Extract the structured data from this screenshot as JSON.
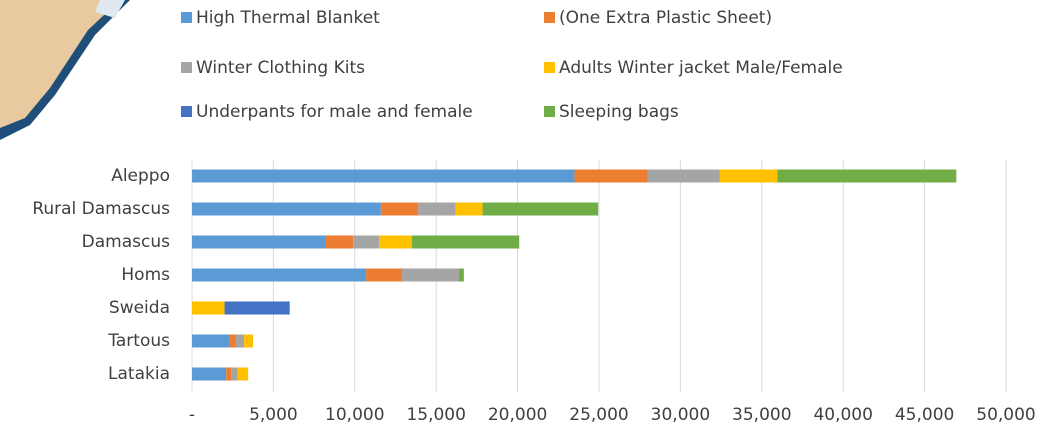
{
  "chart_data": {
    "type": "stacked-barh",
    "categories": [
      "Aleppo",
      "Rural Damascus",
      "Damascus",
      "Homs",
      "Sweida",
      "Tartous",
      "Latakia"
    ],
    "series": [
      {
        "name": "High Thermal Blanket",
        "color": "#5b9bd5",
        "values": [
          23500,
          11600,
          8200,
          10700,
          0,
          2300,
          2100
        ]
      },
      {
        "name": "(One Extra Plastic Sheet)",
        "color": "#ed7d31",
        "values": [
          4500,
          2300,
          1700,
          2200,
          0,
          400,
          300
        ]
      },
      {
        "name": "Winter Clothing Kits",
        "color": "#a5a5a5",
        "values": [
          4400,
          2300,
          1600,
          3500,
          0,
          500,
          400
        ]
      },
      {
        "name": "Adults Winter jacket Male/Female",
        "color": "#ffc000",
        "values": [
          3550,
          1650,
          2000,
          0,
          2000,
          550,
          650
        ]
      },
      {
        "name": "Underpants for male and female",
        "color": "#4472c4",
        "values": [
          0,
          0,
          0,
          0,
          4000,
          0,
          0
        ]
      },
      {
        "name": "Sleeping bags",
        "color": "#70ad47",
        "values": [
          11000,
          7100,
          6600,
          300,
          0,
          0,
          0
        ]
      }
    ],
    "xlim": [
      0,
      50000
    ],
    "xticks": [
      {
        "value": 0,
        "label": "-"
      },
      {
        "value": 5000,
        "label": "5,000"
      },
      {
        "value": 10000,
        "label": "10,000"
      },
      {
        "value": 15000,
        "label": "15,000"
      },
      {
        "value": 20000,
        "label": "20,000"
      },
      {
        "value": 25000,
        "label": "25,000"
      },
      {
        "value": 30000,
        "label": "30,000"
      },
      {
        "value": 35000,
        "label": "35,000"
      },
      {
        "value": 40000,
        "label": "40,000"
      },
      {
        "value": 45000,
        "label": "45,000"
      },
      {
        "value": 50000,
        "label": "50,000"
      }
    ],
    "grid": true,
    "legend": "top"
  }
}
